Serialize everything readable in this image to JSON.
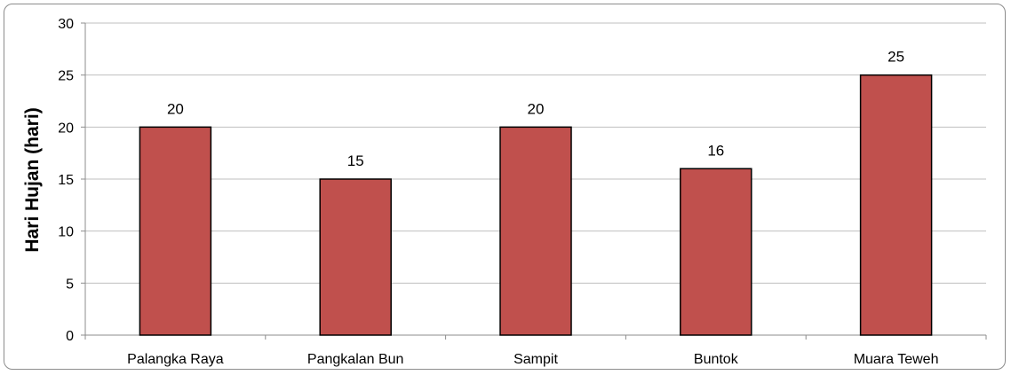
{
  "chart_data": {
    "type": "bar",
    "title": "",
    "xlabel": "",
    "ylabel": "Hari Hujan (hari)",
    "categories": [
      "Palangka Raya",
      "Pangkalan Bun",
      "Sampit",
      "Buntok",
      "Muara Teweh"
    ],
    "values": [
      20,
      15,
      20,
      16,
      25
    ],
    "data_labels": [
      "20",
      "15",
      "20",
      "16",
      "25"
    ],
    "ylim": [
      0,
      30
    ],
    "yticks": [
      0,
      5,
      10,
      15,
      20,
      25,
      30
    ],
    "grid": true,
    "legend": "none",
    "colors": {
      "bar_fill": "#c0504d",
      "bar_stroke": "#000000",
      "gridline": "#bfbfbf",
      "axis": "#8c8c8c"
    }
  }
}
